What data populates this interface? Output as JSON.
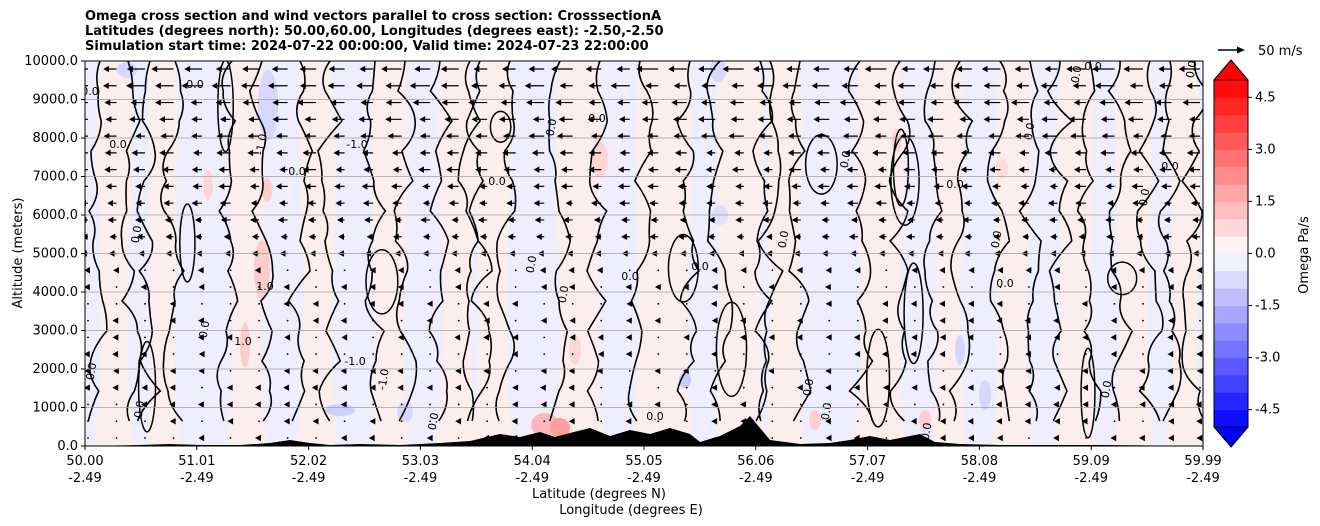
{
  "chart_data": {
    "type": "heatmap",
    "title_lines": [
      "Omega cross section and wind vectors parallel to cross section: CrosssectionA",
      "Latitudes (degrees north): 50.00,60.00, Longitudes (degrees east): -2.50,-2.50",
      "Simulation start time: 2024-07-22 00:00:00, Valid time: 2024-07-23 22:00:00"
    ],
    "ylabel": "Altitude (meters)",
    "xlabel_lines": [
      "Latitude (degrees N)",
      "Longitude (degrees E)"
    ],
    "ylim": [
      0,
      10000
    ],
    "yticks": [
      "0.0",
      "1000.0",
      "2000.0",
      "3000.0",
      "4000.0",
      "5000.0",
      "6000.0",
      "7000.0",
      "8000.0",
      "9000.0",
      "10000.0"
    ],
    "xticks_lat": [
      "50.00",
      "51.01",
      "52.02",
      "53.03",
      "54.04",
      "55.05",
      "56.06",
      "57.07",
      "58.08",
      "59.09",
      "59.99"
    ],
    "xticks_lon": [
      "-2.49",
      "-2.49",
      "-2.49",
      "-2.49",
      "-2.49",
      "-2.49",
      "-2.49",
      "-2.49",
      "-2.49",
      "-2.49",
      "-2.49"
    ],
    "grid": "horizontal",
    "colorbar": {
      "label": "Omega Pa/s",
      "range": [
        -5.0,
        5.0
      ],
      "ticks": [
        "-4.5",
        "-3.0",
        "-1.5",
        "0.0",
        "1.5",
        "3.0",
        "4.5"
      ],
      "extend": "both",
      "cmap": "bwr"
    },
    "vector_key": {
      "label": "50 m/s"
    },
    "contour_labels": [
      "0.0",
      "1.0",
      "-1.0"
    ],
    "terrain_color": "#000000"
  }
}
